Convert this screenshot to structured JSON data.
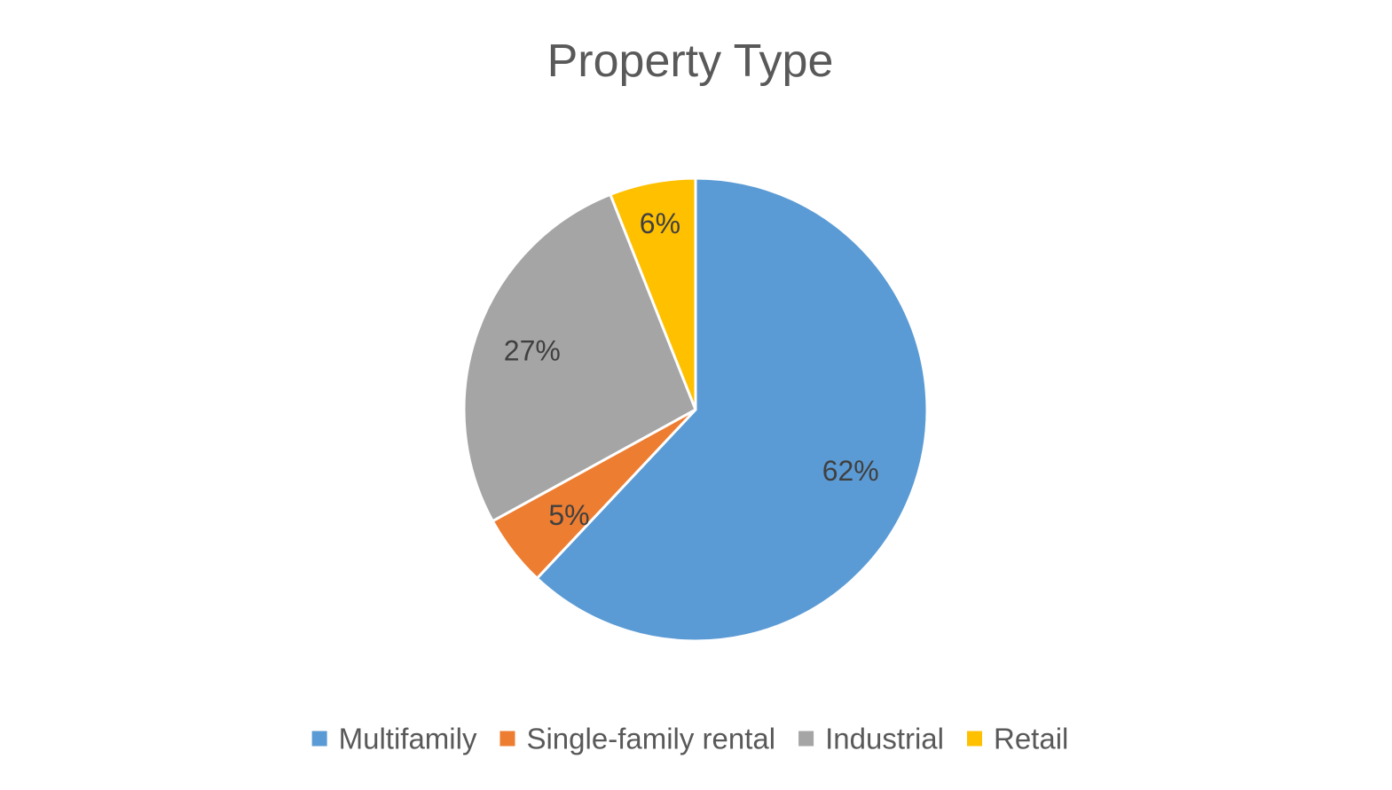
{
  "chart_data": {
    "type": "pie",
    "title": "Property Type",
    "categories": [
      "Multifamily",
      "Single-family rental",
      "Industrial",
      "Retail"
    ],
    "values": [
      62,
      5,
      27,
      6
    ],
    "labels": [
      "62%",
      "5%",
      "27%",
      "6%"
    ],
    "colors": [
      "#5B9BD5",
      "#ED7D31",
      "#A5A5A5",
      "#FFC000"
    ],
    "legend": "bottom",
    "start_angle": "12 o'clock",
    "direction": "clockwise"
  }
}
